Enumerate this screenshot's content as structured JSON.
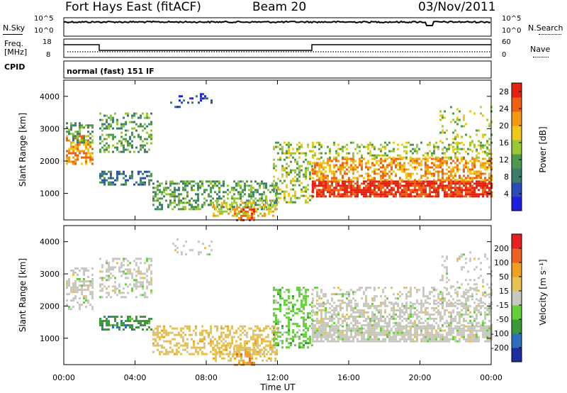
{
  "header": {
    "station": "Fort Hays East (fitACF)",
    "beam": "Beam 20",
    "date": "03/Nov/2011"
  },
  "noise_panel": {
    "left_label": "N.Sky",
    "right_label": "N.Search",
    "left_ticks": [
      "10^5",
      "10^0"
    ],
    "right_ticks": [
      "10^5",
      "10^0"
    ]
  },
  "freq_panel": {
    "left_label_top": "Freq.",
    "left_label_bottom": "[MHz]",
    "right_label": "Nave",
    "left_ticks": [
      "18",
      "8"
    ],
    "right_ticks": [
      "60",
      "0"
    ]
  },
  "cpid": {
    "label": "CPID",
    "value": "normal (fast) 151 IF"
  },
  "chart_data": [
    {
      "type": "heatmap",
      "quantity": "Power",
      "ylabel": "Slant Range [km]",
      "yticks": [
        1000,
        2000,
        3000,
        4000
      ],
      "ylim": [
        180,
        4500
      ],
      "colorbar_label": "Power [dB]",
      "colorbar_ticks": [
        28,
        24,
        20,
        16,
        12,
        8,
        4
      ],
      "colorbar_range": [
        0,
        30
      ]
    },
    {
      "type": "heatmap",
      "quantity": "Velocity",
      "ylabel": "Slant Range [km]",
      "yticks": [
        1000,
        2000,
        3000,
        4000
      ],
      "ylim": [
        180,
        4500
      ],
      "colorbar_label": "Velocity [m s⁻¹]",
      "colorbar_ticks": [
        200,
        100,
        50,
        15,
        -15,
        -50,
        -100,
        -200
      ]
    }
  ],
  "xaxis": {
    "label": "Time UT",
    "ticks": [
      "00:00",
      "04:00",
      "08:00",
      "12:00",
      "16:00",
      "20:00",
      "00:00"
    ]
  },
  "colors": {
    "power_scale": [
      "#1e1ee0",
      "#2b4bb8",
      "#3a7d6c",
      "#4d9a4d",
      "#9ac832",
      "#f0c818",
      "#f59a10",
      "#f06010",
      "#e62010"
    ],
    "velocity_scale": [
      "#1e2ea0",
      "#2e6ebe",
      "#3a9a3a",
      "#63d03a",
      "#c8c8c0",
      "#e6c050",
      "#f0a020",
      "#f06020",
      "#e62020"
    ]
  }
}
